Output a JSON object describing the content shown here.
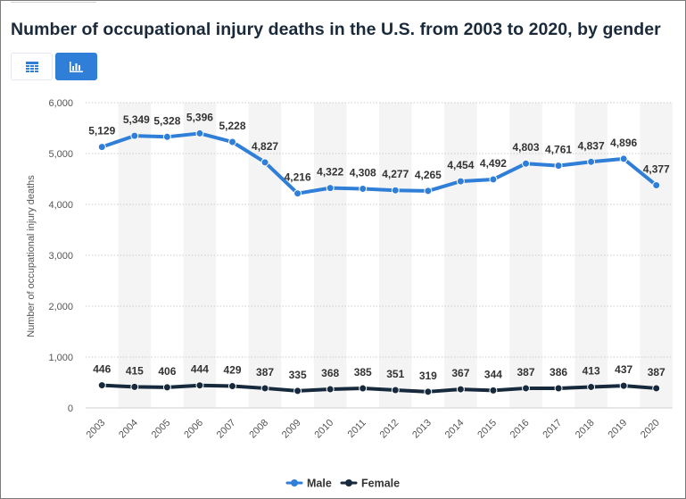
{
  "header": {
    "title": "Number of occupational injury deaths in the U.S. from 2003 to 2020, by gender"
  },
  "toolbar": {
    "table_icon": "table-grid-icon",
    "chart_icon": "bar-chart-icon",
    "active_color": "#2f7ed8"
  },
  "chart_data": {
    "type": "line",
    "title": "Number of occupational injury deaths in the U.S. from 2003 to 2020, by gender",
    "xlabel": "",
    "ylabel": "Number of occupational injury deaths",
    "categories": [
      "2003",
      "2004",
      "2005",
      "2006",
      "2007",
      "2008",
      "2009",
      "2010",
      "2011",
      "2012",
      "2013",
      "2014",
      "2015",
      "2016",
      "2017",
      "2018",
      "2019",
      "2020"
    ],
    "ylim": [
      0,
      6000
    ],
    "yticks": [
      0,
      1000,
      2000,
      3000,
      4000,
      5000,
      6000
    ],
    "ytick_labels": [
      "0",
      "1,000",
      "2,000",
      "3,000",
      "4,000",
      "5,000",
      "6,000"
    ],
    "grid": true,
    "legend_position": "bottom-center",
    "series": [
      {
        "name": "Male",
        "color": "#2f7ed8",
        "values": [
          5129,
          5349,
          5328,
          5396,
          5228,
          4827,
          4216,
          4322,
          4308,
          4277,
          4265,
          4454,
          4492,
          4803,
          4761,
          4837,
          4896,
          4377
        ],
        "labels": [
          "5,129",
          "5,349",
          "5,328",
          "5,396",
          "5,228",
          "4,827",
          "4,216",
          "4,322",
          "4,308",
          "4,277",
          "4,265",
          "4,454",
          "4,492",
          "4,803",
          "4,761",
          "4,837",
          "4,896",
          "4,377"
        ]
      },
      {
        "name": "Female",
        "color": "#17293d",
        "values": [
          446,
          415,
          406,
          444,
          429,
          387,
          335,
          368,
          385,
          351,
          319,
          367,
          344,
          387,
          386,
          413,
          437,
          387
        ],
        "labels": [
          "446",
          "415",
          "406",
          "444",
          "429",
          "387",
          "335",
          "368",
          "385",
          "351",
          "319",
          "367",
          "344",
          "387",
          "386",
          "413",
          "437",
          "387"
        ]
      }
    ]
  }
}
